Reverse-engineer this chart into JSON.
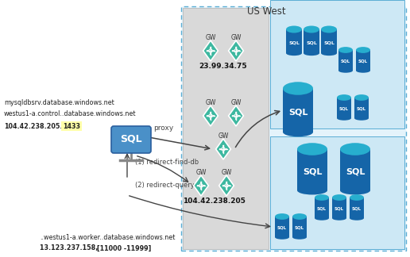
{
  "title": "US West",
  "bg_color": "#ffffff",
  "gw_color": "#3db8a0",
  "sql_large_color": "#1565a8",
  "sql_small_color": "#27aece",
  "sql_top_color": "#27aece",
  "text_top_line1": "mysqldbsrv.database.windows.net",
  "text_top_line2": "westus1-a.control..database.windows.net",
  "text_top_line3_pre": "104.42.238.205.",
  "text_top_line3_bold": "1433",
  "text_bot_line1": "..westus1-a.worker..database.windows.net",
  "text_bot_line2_pre": "13.123.237.158, ",
  "text_bot_line2_bold": "[11000 -11999]",
  "ip_top": "23.99.34.75",
  "ip_bot": "104.42.238.205",
  "label_proxy": "proxy",
  "label_redirect1": "(1) redirect-find-db",
  "label_redirect2": "(2) redirect-query"
}
